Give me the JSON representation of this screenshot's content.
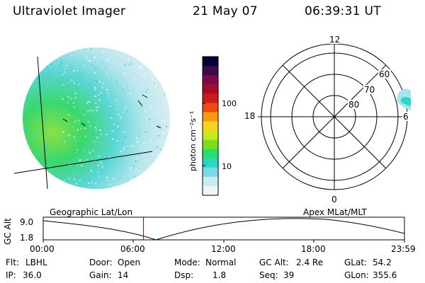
{
  "header": {
    "title": "Ultraviolet Imager",
    "date": "21 May 07",
    "time": "06:39:31 UT"
  },
  "colorbar": {
    "unit_label": "photon cm⁻²s⁻¹",
    "ticks": [
      "100",
      "10"
    ],
    "colors": [
      "#000033",
      "#3a0a4a",
      "#7a0a4a",
      "#a80a2a",
      "#d01a1a",
      "#ee4a10",
      "#f79a10",
      "#f7d420",
      "#c8e820",
      "#7add20",
      "#2ade6a",
      "#2ad8c0",
      "#7ad8e8",
      "#c8ecf0",
      "#f0f6f8"
    ]
  },
  "polar_plot": {
    "labels": [
      "12",
      "18",
      "6",
      "0",
      "60",
      "70",
      "80"
    ]
  },
  "timeline": {
    "left_title": "Geographic Lat/Lon",
    "right_title": "Apex  MLat/MLT",
    "y_axis_label": "GC Alt",
    "y_ticks": [
      "9.0",
      "1.8"
    ],
    "x_ticks": [
      "00:00",
      "06:00",
      "12:00",
      "18:00",
      "23:59"
    ],
    "current_time_hours": 6.66,
    "current_time_color": "#cc0000"
  },
  "info": {
    "row1": [
      {
        "label": "Flt:",
        "value": "LBHL"
      },
      {
        "label": "Door:",
        "value": "Open"
      },
      {
        "label": "Mode:",
        "value": "Normal"
      },
      {
        "label": "GC Alt:",
        "value": "2.4 Re"
      },
      {
        "label": "GLat:",
        "value": "54.2"
      }
    ],
    "row2": [
      {
        "label": "IP:",
        "value": "36.0"
      },
      {
        "label": "Gain:",
        "value": "14"
      },
      {
        "label": "Dsp:",
        "value": "1.8"
      },
      {
        "label": "Seq:",
        "value": "39"
      },
      {
        "label": "GLon:",
        "value": "355.6"
      }
    ]
  }
}
